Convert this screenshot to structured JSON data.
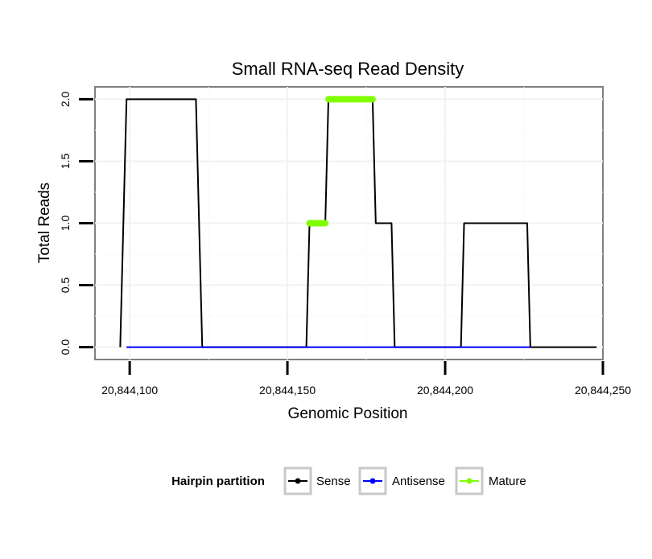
{
  "chart_data": {
    "type": "line",
    "title": "Small RNA-seq Read Density",
    "xlabel": "Genomic Position",
    "ylabel": "Total Reads",
    "xlim": [
      20844089,
      20844250
    ],
    "ylim": [
      -0.1,
      2.1
    ],
    "x_ticks": [
      20844100,
      20844150,
      20844200,
      20844250
    ],
    "x_tick_labels": [
      "20,844,100",
      "20,844,150",
      "20,844,200",
      "20,844,250"
    ],
    "y_ticks": [
      0,
      0.5,
      1,
      1.5,
      2
    ],
    "y_tick_labels": [
      "0.0",
      "0.5",
      "1.0",
      "1.5",
      "2.0"
    ],
    "grid": true,
    "legend": {
      "title": "Hairpin partition",
      "position": "bottom",
      "entries": [
        "Sense",
        "Antisense",
        "Mature"
      ]
    },
    "series": [
      {
        "name": "Sense",
        "color": "#000000",
        "style": "line",
        "x": [
          20844097,
          20844099,
          20844121,
          20844123,
          20844156,
          20844157,
          20844162,
          20844163,
          20844177,
          20844178,
          20844183,
          20844184,
          20844205,
          20844206,
          20844226,
          20844227,
          20844248
        ],
        "y": [
          0,
          2,
          2,
          0,
          0,
          1,
          1,
          2,
          2,
          1,
          1,
          0,
          0,
          1,
          1,
          0,
          0
        ]
      },
      {
        "name": "Antisense",
        "color": "#0000ff",
        "style": "line",
        "x": [
          20844099,
          20844227
        ],
        "y": [
          0,
          0
        ]
      },
      {
        "name": "Mature",
        "color": "#80ff00",
        "style": "thick",
        "segments": [
          {
            "x": [
              20844157,
              20844162
            ],
            "y": [
              1,
              1
            ]
          },
          {
            "x": [
              20844163,
              20844177
            ],
            "y": [
              2,
              2
            ]
          }
        ]
      }
    ]
  }
}
